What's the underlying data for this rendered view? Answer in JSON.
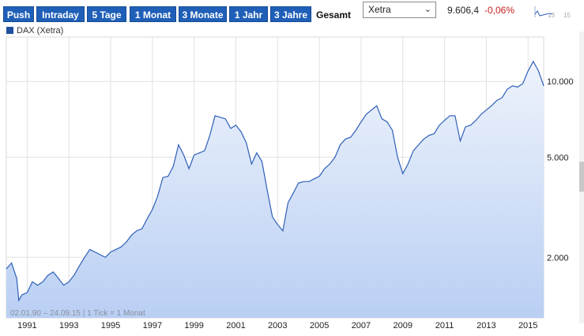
{
  "toolbar": {
    "buttons": [
      "Push",
      "Intraday",
      "5 Tage",
      "1 Monat",
      "3 Monate",
      "1 Jahr",
      "3 Jahre",
      "Gesamt"
    ],
    "active": "Gesamt",
    "exchange": "Xetra",
    "last_price": "9.606,4",
    "change_pct": "-0,06%",
    "mini_chart_labels": [
      "13",
      "15"
    ]
  },
  "legend": {
    "label": "DAX (Xetra)"
  },
  "info_text": "02.01.90 – 24.09.15 | 1 Tick = 1 Monat",
  "colors": {
    "accent": "#1f5fb7",
    "series": "#2f5fb8",
    "fill": "#c9dbf7",
    "change": "#c62222"
  },
  "icons": {
    "dropdown": "chevron-down-icon"
  },
  "chart_data": {
    "type": "area",
    "title": "",
    "xlabel": "",
    "ylabel": "",
    "yscale": "log",
    "y_axis_side": "right",
    "xlim": [
      1990.0,
      2015.75
    ],
    "ylim": [
      1150,
      15000
    ],
    "x_ticks": [
      1991,
      1993,
      1995,
      1997,
      1999,
      2001,
      2003,
      2005,
      2007,
      2009,
      2011,
      2013,
      2015
    ],
    "x_tick_labels": [
      "1991",
      "1993",
      "1995",
      "1997",
      "1999",
      "2001",
      "2003",
      "2005",
      "2007",
      "2009",
      "2011",
      "2013",
      "2015"
    ],
    "y_ticks": [
      2000,
      5000,
      10000
    ],
    "y_tick_labels": [
      "2.000",
      "5.000",
      "10.000"
    ],
    "grid": true,
    "legend_position": "top-left",
    "series": [
      {
        "name": "DAX (Xetra)",
        "x": [
          1990.0,
          1990.25,
          1990.5,
          1990.6,
          1990.75,
          1991.0,
          1991.25,
          1991.5,
          1991.75,
          1992.0,
          1992.25,
          1992.5,
          1992.75,
          1993.0,
          1993.25,
          1993.5,
          1993.75,
          1994.0,
          1994.25,
          1994.5,
          1994.75,
          1995.0,
          1995.25,
          1995.5,
          1995.75,
          1996.0,
          1996.25,
          1996.5,
          1996.75,
          1997.0,
          1997.25,
          1997.5,
          1997.75,
          1998.0,
          1998.25,
          1998.5,
          1998.75,
          1999.0,
          1999.25,
          1999.5,
          1999.75,
          2000.0,
          2000.25,
          2000.5,
          2000.75,
          2001.0,
          2001.25,
          2001.5,
          2001.75,
          2002.0,
          2002.25,
          2002.5,
          2002.75,
          2003.0,
          2003.25,
          2003.5,
          2003.75,
          2004.0,
          2004.25,
          2004.5,
          2004.75,
          2005.0,
          2005.25,
          2005.5,
          2005.75,
          2006.0,
          2006.25,
          2006.5,
          2006.75,
          2007.0,
          2007.25,
          2007.5,
          2007.75,
          2008.0,
          2008.25,
          2008.5,
          2008.75,
          2009.0,
          2009.25,
          2009.5,
          2009.75,
          2010.0,
          2010.25,
          2010.5,
          2010.75,
          2011.0,
          2011.25,
          2011.5,
          2011.75,
          2012.0,
          2012.25,
          2012.5,
          2012.75,
          2013.0,
          2013.25,
          2013.5,
          2013.75,
          2014.0,
          2014.25,
          2014.5,
          2014.75,
          2015.0,
          2015.25,
          2015.5,
          2015.75
        ],
        "y": [
          1800,
          1900,
          1650,
          1350,
          1420,
          1450,
          1600,
          1550,
          1600,
          1700,
          1750,
          1650,
          1550,
          1600,
          1700,
          1850,
          2000,
          2150,
          2100,
          2050,
          2000,
          2100,
          2150,
          2200,
          2300,
          2450,
          2550,
          2600,
          2850,
          3100,
          3500,
          4150,
          4200,
          4600,
          5600,
          5100,
          4500,
          5100,
          5200,
          5300,
          6100,
          7300,
          7200,
          7100,
          6500,
          6700,
          6300,
          5700,
          4700,
          5200,
          4800,
          3700,
          2900,
          2700,
          2550,
          3300,
          3600,
          3950,
          4000,
          4000,
          4100,
          4200,
          4500,
          4700,
          5000,
          5600,
          5900,
          6000,
          6400,
          6900,
          7400,
          7700,
          8000,
          7100,
          6900,
          6400,
          5000,
          4300,
          4700,
          5300,
          5600,
          5900,
          6100,
          6200,
          6700,
          7000,
          7300,
          7300,
          5800,
          6600,
          6700,
          7000,
          7400,
          7700,
          8000,
          8400,
          8600,
          9300,
          9600,
          9500,
          9800,
          11000,
          12000,
          11000,
          9600
        ]
      }
    ]
  }
}
